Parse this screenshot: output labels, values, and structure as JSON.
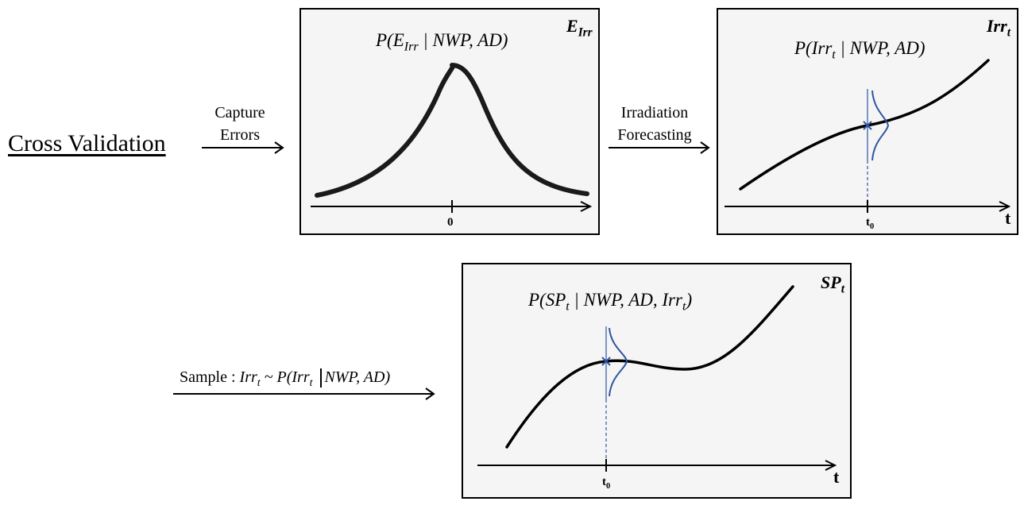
{
  "left_label": "Cross Validation",
  "arrow1": {
    "line1": "Capture",
    "line2": "Errors"
  },
  "arrow2": {
    "line1": "Irradiation",
    "line2": "Forecasting"
  },
  "arrow3": {
    "prefix": "Sample : ",
    "lhs": "Irr",
    "lhs_sub": "t",
    "tilde": " ~ P(Irr",
    "rhs_sub": "t",
    "cond": "NWP, AD)"
  },
  "panel_error": {
    "label": "E",
    "label_sub": "Irr",
    "formula_pre": "P(E",
    "formula_sub": "Irr",
    "formula_post": " | NWP, AD)",
    "tick": "0"
  },
  "panel_irr": {
    "label": "Irr",
    "label_sub": "t",
    "formula_pre": "P(Irr",
    "formula_sub": "t",
    "formula_post": " | NWP, AD)",
    "tick": "t",
    "tick_sub": "0",
    "axis": "t"
  },
  "panel_sp": {
    "label": "SP",
    "label_sub": "t",
    "formula_pre": "P(SP",
    "formula_sub": "t",
    "formula_mid": " | NWP, AD, Irr",
    "formula_sub2": "t",
    "formula_post": ")",
    "tick": "t",
    "tick_sub": "0",
    "axis": "t"
  },
  "colors": {
    "distribution": "#2f55a4",
    "curve": "#000000",
    "panel_bg": "#f5f5f5"
  }
}
